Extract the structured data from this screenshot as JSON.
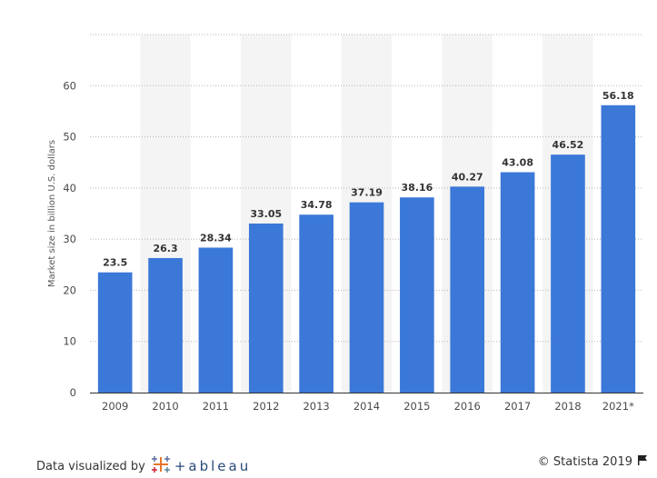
{
  "chart_data": {
    "type": "bar",
    "categories": [
      "2009",
      "2010",
      "2011",
      "2012",
      "2013",
      "2014",
      "2015",
      "2016",
      "2017",
      "2018",
      "2021*"
    ],
    "values": [
      23.5,
      26.3,
      28.34,
      33.05,
      34.78,
      37.19,
      38.16,
      40.27,
      43.08,
      46.52,
      56.18
    ],
    "value_labels": [
      "23.5",
      "26.3",
      "28.34",
      "33.05",
      "34.78",
      "37.19",
      "38.16",
      "40.27",
      "43.08",
      "46.52",
      "56.18"
    ],
    "ylabel": "Market size in billion U.S. dollars",
    "yticks": [
      0,
      10,
      20,
      30,
      40,
      50,
      60
    ],
    "ylim": [
      0,
      70
    ],
    "grid": true,
    "bar_color": "#3b78d8"
  },
  "footer": {
    "credit_prefix": "Data visualized by",
    "tableau_word": "+ableau",
    "copyright": "© Statista 2019"
  },
  "icons": {
    "tableau_logo": "tableau-cross-icon",
    "flag": "flag-icon"
  }
}
